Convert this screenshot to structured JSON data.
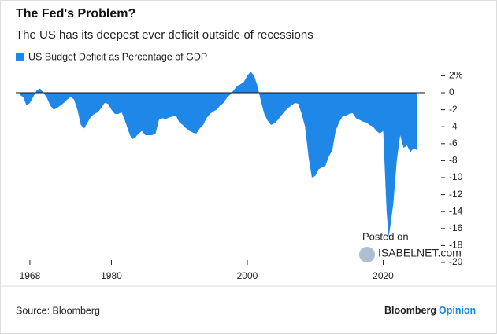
{
  "chart_data": {
    "type": "area",
    "title": "The Fed's Problem?",
    "subtitle": "The US has its deepest ever deficit outside of recessions",
    "source": "Source: Bloomberg",
    "brand": "Bloomberg",
    "brand_suffix": "Opinion",
    "watermark": [
      "Posted on",
      "ISABELNET.com"
    ],
    "xlim": [
      1966.5,
      2026.2
    ],
    "xticks": [
      1968,
      1980,
      2000,
      2020
    ],
    "ylim": [
      -20,
      2
    ],
    "yticks": [
      {
        "value": 2,
        "label": "2%"
      },
      0,
      -2,
      -4,
      -6,
      -8,
      -10,
      -12,
      -14,
      -16,
      -18,
      -20
    ],
    "series": [
      {
        "name": "US Budget Deficit as Percentage of GDP",
        "color": "#1f87e8",
        "x": [
          1966.6,
          1967,
          1967.5,
          1968,
          1968.5,
          1969,
          1969.5,
          1970,
          1970.5,
          1971,
          1971.5,
          1972,
          1972.5,
          1973,
          1973.5,
          1974,
          1974.5,
          1975,
          1975.5,
          1976,
          1976.5,
          1977,
          1977.5,
          1978,
          1978.5,
          1979,
          1979.5,
          1980,
          1980.5,
          1981,
          1981.5,
          1982,
          1982.5,
          1983,
          1983.5,
          1984,
          1984.5,
          1985,
          1985.5,
          1986,
          1986.5,
          1987,
          1987.5,
          1988,
          1988.5,
          1989,
          1989.5,
          1990,
          1990.5,
          1991,
          1991.5,
          1992,
          1992.5,
          1993,
          1993.5,
          1994,
          1994.5,
          1995,
          1995.5,
          1996,
          1996.5,
          1997,
          1997.5,
          1998,
          1998.5,
          1999,
          1999.5,
          2000,
          2000.5,
          2001,
          2001.5,
          2002,
          2002.5,
          2003,
          2003.5,
          2004,
          2004.5,
          2005,
          2005.5,
          2006,
          2006.5,
          2007,
          2007.5,
          2008,
          2008.5,
          2009,
          2009.5,
          2010,
          2010.5,
          2011,
          2011.5,
          2012,
          2012.5,
          2013,
          2013.5,
          2014,
          2014.5,
          2015,
          2015.5,
          2016,
          2016.5,
          2017,
          2017.5,
          2018,
          2018.5,
          2019,
          2019.5,
          2020,
          2020.5,
          2020.8,
          2021,
          2021.5,
          2022,
          2022.5,
          2023,
          2023.5,
          2024,
          2024.5,
          2025
        ],
        "values": [
          -0.3,
          -0.5,
          -1.5,
          -1.2,
          -0.5,
          0.3,
          0.5,
          0,
          -0.6,
          -1.5,
          -2,
          -1.8,
          -1.5,
          -1.2,
          -0.8,
          -0.5,
          -0.8,
          -2,
          -3.8,
          -4.2,
          -3.5,
          -2.8,
          -2.5,
          -2.3,
          -1.8,
          -1.2,
          -1.3,
          -2,
          -2.5,
          -2.5,
          -2.3,
          -3.3,
          -4.5,
          -5.5,
          -5.3,
          -4.8,
          -4.5,
          -5,
          -5,
          -5,
          -4.8,
          -3.2,
          -3,
          -3.1,
          -2.9,
          -2.8,
          -2.7,
          -3.5,
          -3.8,
          -4.2,
          -4.5,
          -4.7,
          -4.8,
          -4.2,
          -3.8,
          -3,
          -2.5,
          -2.2,
          -2,
          -1.5,
          -1.2,
          -0.6,
          -0.2,
          0.3,
          0.8,
          1,
          1.3,
          2,
          2.5,
          2,
          0.8,
          -1,
          -2.5,
          -3.3,
          -3.8,
          -3.6,
          -3.2,
          -2.7,
          -2.2,
          -1.8,
          -1.5,
          -1.2,
          -1.3,
          -2.5,
          -4,
          -7.5,
          -10,
          -9.8,
          -9,
          -8.8,
          -8.6,
          -7.5,
          -6.8,
          -4.5,
          -3.5,
          -2.8,
          -2.7,
          -2.5,
          -2.4,
          -3,
          -3.2,
          -3.4,
          -3.5,
          -3.8,
          -4,
          -4.5,
          -4.8,
          -4.5,
          -14,
          -17,
          -16,
          -13,
          -8,
          -5,
          -6.5,
          -6.2,
          -7,
          -6.5,
          -6.8
        ]
      }
    ]
  }
}
